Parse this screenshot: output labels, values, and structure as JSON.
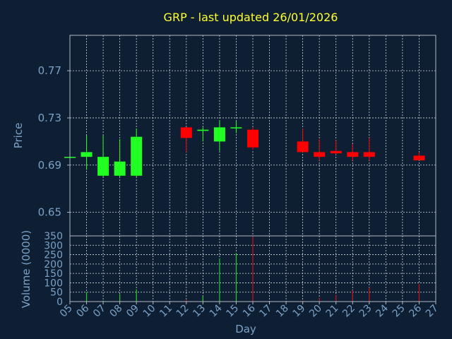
{
  "colors": {
    "background": "#0f1f33",
    "up": "#22ff22",
    "down": "#ff0000",
    "title": "#ffff33",
    "axis_text": "#7aa2c8",
    "up_volume": "#22cc22",
    "down_volume": "#cc1111"
  },
  "chart_data": {
    "type": "candlestick",
    "title": "GRP - last updated 26/01/2026",
    "xlabel": "Day",
    "price_panel": {
      "ylabel": "Price",
      "ylim": [
        0.63,
        0.8
      ],
      "yticks": [
        "0.77",
        "0.73",
        "0.69",
        "0.65"
      ],
      "ytick_values": [
        0.77,
        0.73,
        0.69,
        0.65
      ],
      "grid": true
    },
    "volume_panel": {
      "ylabel": "Volume (0000)",
      "ylim": [
        0,
        350
      ],
      "yticks": [
        "350",
        "300",
        "250",
        "200",
        "150",
        "100",
        "50",
        "0"
      ],
      "ytick_values": [
        350,
        300,
        250,
        200,
        150,
        100,
        50,
        0
      ],
      "grid": true
    },
    "x_ticks": [
      "05",
      "06",
      "07",
      "08",
      "09",
      "10",
      "11",
      "12",
      "13",
      "14",
      "15",
      "16",
      "17",
      "18",
      "19",
      "20",
      "21",
      "22",
      "23",
      "24",
      "25",
      "26",
      "27"
    ],
    "candles": [
      {
        "day": "05",
        "open": 0.697,
        "high": 0.697,
        "low": 0.697,
        "close": 0.697,
        "volume": 0
      },
      {
        "day": "06",
        "open": 0.697,
        "high": 0.715,
        "low": 0.686,
        "close": 0.701,
        "volume": 50
      },
      {
        "day": "07",
        "open": 0.681,
        "high": 0.715,
        "low": 0.68,
        "close": 0.697,
        "volume": 5
      },
      {
        "day": "08",
        "open": 0.681,
        "high": 0.712,
        "low": 0.68,
        "close": 0.693,
        "volume": 40
      },
      {
        "day": "09",
        "open": 0.681,
        "high": 0.721,
        "low": 0.68,
        "close": 0.714,
        "volume": 65
      },
      {
        "day": "12",
        "open": 0.722,
        "high": 0.722,
        "low": 0.701,
        "close": 0.713,
        "volume": 10
      },
      {
        "day": "13",
        "open": 0.719,
        "high": 0.722,
        "low": 0.71,
        "close": 0.72,
        "volume": 30
      },
      {
        "day": "14",
        "open": 0.71,
        "high": 0.728,
        "low": 0.702,
        "close": 0.722,
        "volume": 230
      },
      {
        "day": "15",
        "open": 0.722,
        "high": 0.727,
        "low": 0.717,
        "close": 0.722,
        "volume": 260
      },
      {
        "day": "16",
        "open": 0.72,
        "high": 0.722,
        "low": 0.703,
        "close": 0.705,
        "volume": 350
      },
      {
        "day": "19",
        "open": 0.71,
        "high": 0.721,
        "low": 0.701,
        "close": 0.701,
        "volume": 5
      },
      {
        "day": "20",
        "open": 0.701,
        "high": 0.712,
        "low": 0.694,
        "close": 0.697,
        "volume": 20
      },
      {
        "day": "21",
        "open": 0.702,
        "high": 0.711,
        "low": 0.699,
        "close": 0.7,
        "volume": 35
      },
      {
        "day": "22",
        "open": 0.701,
        "high": 0.708,
        "low": 0.694,
        "close": 0.697,
        "volume": 60
      },
      {
        "day": "23",
        "open": 0.701,
        "high": 0.713,
        "low": 0.694,
        "close": 0.697,
        "volume": 75
      },
      {
        "day": "26",
        "open": 0.698,
        "high": 0.701,
        "low": 0.694,
        "close": 0.694,
        "volume": 95
      }
    ]
  }
}
